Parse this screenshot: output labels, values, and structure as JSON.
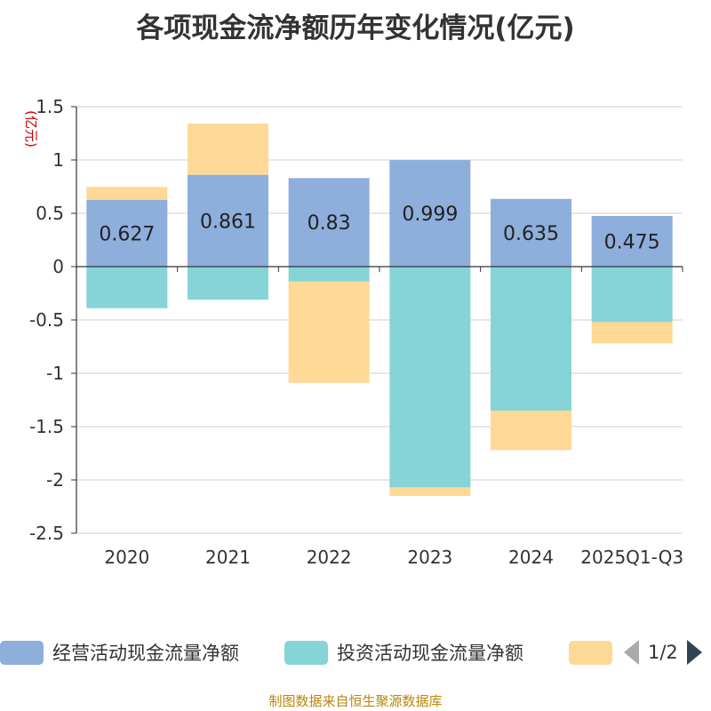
{
  "chart_data": {
    "type": "bar",
    "stacked": true,
    "title": "各项现金流净额历年变化情况(亿元)",
    "ylabel": "(亿元)",
    "xlabel": "",
    "ylim": [
      -2.5,
      1.5
    ],
    "yticks": [
      1.5,
      1,
      0.5,
      0,
      -0.5,
      -1,
      -1.5,
      -2,
      -2.5
    ],
    "ytick_labels": [
      "1.5",
      "1",
      "0.5",
      "0",
      "-0.5",
      "-1",
      "-1.5",
      "-2",
      "-2.5"
    ],
    "grid": true,
    "categories": [
      "2020",
      "2021",
      "2022",
      "2023",
      "2024",
      "2025Q1-Q3"
    ],
    "series": [
      {
        "name": "经营活动现金流量净额",
        "color": "#8eaedc",
        "values": [
          0.627,
          0.861,
          0.83,
          0.999,
          0.635,
          0.475
        ],
        "labels": [
          "0.627",
          "0.861",
          "0.83",
          "0.999",
          "0.635",
          "0.475"
        ]
      },
      {
        "name": "投资活动现金流量净额",
        "color": "#86d4d7",
        "values": [
          -0.39,
          -0.31,
          -0.14,
          -2.07,
          -1.35,
          -0.52
        ]
      },
      {
        "name": "",
        "color": "#fed996",
        "values": [
          0.12,
          0.48,
          -0.95,
          -0.08,
          -0.37,
          -0.2
        ]
      }
    ]
  },
  "legend": {
    "items": [
      {
        "label": "经营活动现金流量净额",
        "color": "#8eaedc"
      },
      {
        "label": "投资活动现金流量净额",
        "color": "#86d4d7"
      },
      {
        "label": "",
        "color": "#fed996"
      }
    ],
    "page": "1/2"
  },
  "source": "制图数据来自恒生聚源数据库"
}
